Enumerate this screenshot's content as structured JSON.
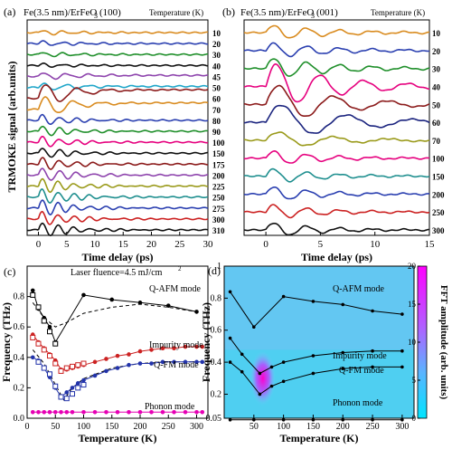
{
  "chart_data": [
    {
      "panel": "(a)",
      "type": "line",
      "title": "Fe(3.5 nm)/ErFeO3(100)",
      "legend_title": "Temperature (K)",
      "ylabel": "TRMOKE signal (arb.units)",
      "xlabel": "Time delay (ps)",
      "xlim": [
        -2,
        30
      ],
      "xticks": [
        0,
        5,
        10,
        15,
        20,
        25,
        30
      ],
      "series": [
        {
          "name": "10",
          "color": "#d98b1f",
          "oscillation": {
            "amplitude": 0.25,
            "period_ps": 3.5,
            "decay_ps": 8,
            "drift": 0.0
          }
        },
        {
          "name": "20",
          "color": "#2a3fb0",
          "oscillation": {
            "amplitude": 0.25,
            "period_ps": 3.5,
            "decay_ps": 8,
            "drift": 0.0
          }
        },
        {
          "name": "30",
          "color": "#1f8f2a",
          "oscillation": {
            "amplitude": 0.25,
            "period_ps": 3.5,
            "decay_ps": 8,
            "drift": 0.0
          }
        },
        {
          "name": "40",
          "color": "#111111",
          "oscillation": {
            "amplitude": 0.2,
            "period_ps": 3.5,
            "decay_ps": 8,
            "drift": 0.0
          }
        },
        {
          "name": "45",
          "color": "#8e44ad",
          "oscillation": {
            "amplitude": 0.4,
            "period_ps": 4.0,
            "decay_ps": 8,
            "drift": 0.1
          }
        },
        {
          "name": "50",
          "color": "#1fa6c9",
          "oscillation": {
            "amplitude": 0.4,
            "period_ps": 4.0,
            "decay_ps": 8,
            "drift": 0.1
          }
        },
        {
          "name": "60",
          "color": "#8b1a1a",
          "oscillation": {
            "amplitude": 1.6,
            "period_ps": 5.5,
            "decay_ps": 5,
            "drift": 0.8
          }
        },
        {
          "name": "70",
          "color": "#d98b1f",
          "oscillation": {
            "amplitude": 1.4,
            "period_ps": 5.0,
            "decay_ps": 5,
            "drift": 0.6
          }
        },
        {
          "name": "80",
          "color": "#2a3fb0",
          "oscillation": {
            "amplitude": 0.6,
            "period_ps": 3.0,
            "decay_ps": 6,
            "drift": 0.0
          }
        },
        {
          "name": "90",
          "color": "#1f8f2a",
          "oscillation": {
            "amplitude": 0.6,
            "period_ps": 3.0,
            "decay_ps": 6,
            "drift": 0.0
          }
        },
        {
          "name": "100",
          "color": "#e6007e",
          "oscillation": {
            "amplitude": 0.6,
            "period_ps": 3.0,
            "decay_ps": 6,
            "drift": 0.0
          }
        },
        {
          "name": "150",
          "color": "#111111",
          "oscillation": {
            "amplitude": 0.6,
            "period_ps": 3.0,
            "decay_ps": 6,
            "drift": 0.0
          }
        },
        {
          "name": "175",
          "color": "#8b1a1a",
          "oscillation": {
            "amplitude": 0.7,
            "period_ps": 3.0,
            "decay_ps": 6,
            "drift": 0.0
          }
        },
        {
          "name": "200",
          "color": "#8e44ad",
          "oscillation": {
            "amplitude": 0.8,
            "period_ps": 3.0,
            "decay_ps": 6,
            "drift": 0.0
          }
        },
        {
          "name": "225",
          "color": "#9a9a1a",
          "oscillation": {
            "amplitude": 0.8,
            "period_ps": 2.8,
            "decay_ps": 6,
            "drift": 0.0
          }
        },
        {
          "name": "250",
          "color": "#1f8f8f",
          "oscillation": {
            "amplitude": 0.9,
            "period_ps": 2.8,
            "decay_ps": 6,
            "drift": 0.0
          }
        },
        {
          "name": "275",
          "color": "#2a3fb0",
          "oscillation": {
            "amplitude": 0.9,
            "period_ps": 2.8,
            "decay_ps": 6,
            "drift": 0.0
          }
        },
        {
          "name": "300",
          "color": "#cc2222",
          "oscillation": {
            "amplitude": 0.8,
            "period_ps": 2.8,
            "decay_ps": 6,
            "drift": 0.0
          }
        },
        {
          "name": "310",
          "color": "#111111",
          "oscillation": {
            "amplitude": 0.8,
            "period_ps": 2.8,
            "decay_ps": 6,
            "drift": 0.0
          }
        }
      ]
    },
    {
      "panel": "(b)",
      "type": "line",
      "title": "Fe(3.5 nm)/ErFeO3(001)",
      "legend_title": "Temperature (K)",
      "xlabel": "Time delay (ps)",
      "xlim": [
        -2,
        15
      ],
      "xticks": [
        0,
        5,
        10,
        15
      ],
      "series": [
        {
          "name": "10",
          "color": "#d98b1f",
          "oscillation": {
            "amplitude": 0.5,
            "period_ps": 3.0,
            "decay_ps": 6,
            "drift": 0.0
          }
        },
        {
          "name": "20",
          "color": "#2a3fb0",
          "oscillation": {
            "amplitude": 0.5,
            "period_ps": 3.0,
            "decay_ps": 6,
            "drift": 0.0
          }
        },
        {
          "name": "30",
          "color": "#1f8f2a",
          "oscillation": {
            "amplitude": 0.7,
            "period_ps": 3.0,
            "decay_ps": 6,
            "drift": 0.0
          }
        },
        {
          "name": "40",
          "color": "#e6007e",
          "oscillation": {
            "amplitude": 1.6,
            "period_ps": 4.0,
            "decay_ps": 6,
            "drift": 0.0
          }
        },
        {
          "name": "50",
          "color": "#8b1a1a",
          "oscillation": {
            "amplitude": 1.4,
            "period_ps": 5.0,
            "decay_ps": 6,
            "drift": 0.0
          }
        },
        {
          "name": "60",
          "color": "#1a237e",
          "oscillation": {
            "amplitude": 1.3,
            "period_ps": 6.0,
            "decay_ps": 7,
            "drift": 0.0
          }
        },
        {
          "name": "70",
          "color": "#9a9a1a",
          "oscillation": {
            "amplitude": 0.6,
            "period_ps": 5.0,
            "decay_ps": 6,
            "drift": 0.0
          }
        },
        {
          "name": "100",
          "color": "#e6007e",
          "oscillation": {
            "amplitude": 0.5,
            "period_ps": 3.0,
            "decay_ps": 5,
            "drift": 0.0
          }
        },
        {
          "name": "150",
          "color": "#1f8f8f",
          "oscillation": {
            "amplitude": 0.5,
            "period_ps": 3.0,
            "decay_ps": 5,
            "drift": 0.0
          }
        },
        {
          "name": "200",
          "color": "#2a3fb0",
          "oscillation": {
            "amplitude": 0.5,
            "period_ps": 3.0,
            "decay_ps": 5,
            "drift": 0.0
          }
        },
        {
          "name": "250",
          "color": "#cc2222",
          "oscillation": {
            "amplitude": 0.5,
            "period_ps": 3.0,
            "decay_ps": 5,
            "drift": 0.0
          }
        },
        {
          "name": "300",
          "color": "#111111",
          "oscillation": {
            "amplitude": 0.5,
            "period_ps": 3.0,
            "decay_ps": 5,
            "drift": 0.0
          }
        }
      ]
    },
    {
      "panel": "(c)",
      "type": "scatter",
      "xlabel": "Temperature (K)",
      "ylabel": "Frequency (THz)",
      "annotation": "Laser fluence=4.5 mJ/cm",
      "annotation_sup": "2",
      "xlim": [
        0,
        320
      ],
      "ylim": [
        0,
        1.0
      ],
      "xticks": [
        0,
        50,
        100,
        150,
        200,
        250,
        300
      ],
      "yticks": [
        0.0,
        0.2,
        0.4,
        0.6,
        0.8
      ],
      "series": [
        {
          "name": "Q-AFM mode",
          "color": "#000000",
          "marker": "filled",
          "x": [
            10,
            20,
            30,
            40,
            50,
            100,
            150,
            200,
            250,
            300
          ],
          "y": [
            0.84,
            0.72,
            0.66,
            0.6,
            0.5,
            0.81,
            0.78,
            0.76,
            0.74,
            0.7
          ]
        },
        {
          "name": "Impurity mode",
          "color": "#cc2222",
          "marker": "filled",
          "x": [
            10,
            20,
            30,
            40,
            50,
            60,
            70,
            80,
            90,
            100,
            120,
            140,
            160,
            180,
            200,
            220,
            240,
            260,
            280,
            300,
            310
          ],
          "y": [
            0.55,
            0.5,
            0.46,
            0.42,
            0.38,
            0.32,
            0.32,
            0.33,
            0.34,
            0.35,
            0.37,
            0.39,
            0.41,
            0.42,
            0.44,
            0.45,
            0.46,
            0.46,
            0.47,
            0.47,
            0.47
          ]
        },
        {
          "name": "Q-FM mode",
          "color": "#2233aa",
          "marker": "filled",
          "x": [
            10,
            20,
            30,
            40,
            50,
            60,
            70,
            80,
            90,
            100,
            120,
            140,
            160,
            180,
            200,
            220,
            240,
            260,
            280,
            300,
            310
          ],
          "y": [
            0.4,
            0.38,
            0.33,
            0.27,
            0.2,
            0.14,
            0.17,
            0.2,
            0.23,
            0.25,
            0.28,
            0.31,
            0.33,
            0.35,
            0.36,
            0.36,
            0.37,
            0.37,
            0.37,
            0.37,
            0.37
          ]
        },
        {
          "name": "Phonon mode",
          "color": "#e600b4",
          "marker": "filled",
          "x": [
            10,
            20,
            30,
            40,
            50,
            60,
            70,
            80,
            100,
            120,
            140,
            160,
            180,
            200,
            220,
            240,
            260,
            280,
            300,
            310
          ],
          "y": [
            0.04,
            0.04,
            0.04,
            0.04,
            0.04,
            0.04,
            0.04,
            0.04,
            0.04,
            0.04,
            0.04,
            0.04,
            0.04,
            0.04,
            0.04,
            0.04,
            0.04,
            0.04,
            0.04,
            0.04
          ]
        },
        {
          "name": "",
          "color": "#000000",
          "marker": "open",
          "x": [
            10,
            20,
            30,
            40,
            50
          ],
          "y": [
            0.81,
            0.73,
            0.64,
            0.57,
            0.49
          ]
        },
        {
          "name": "",
          "color": "#cc2222",
          "marker": "open",
          "x": [
            10,
            20,
            30,
            40,
            50,
            60,
            70,
            80,
            90,
            100
          ],
          "y": [
            0.53,
            0.49,
            0.45,
            0.41,
            0.36,
            0.31,
            0.33,
            0.34,
            0.35,
            0.36
          ]
        },
        {
          "name": "",
          "color": "#2233aa",
          "marker": "open",
          "x": [
            20,
            30,
            40,
            50,
            60,
            70,
            80,
            90,
            100
          ],
          "y": [
            0.37,
            0.33,
            0.29,
            0.21,
            0.14,
            0.13,
            0.16,
            0.2,
            0.22
          ]
        }
      ],
      "fit_curves": [
        {
          "name": "Q-AFM fit",
          "style": "dashed",
          "x": [
            10,
            30,
            50,
            70,
            100,
            150,
            200,
            250,
            300
          ],
          "y": [
            0.76,
            0.66,
            0.6,
            0.63,
            0.69,
            0.73,
            0.75,
            0.73,
            0.7
          ]
        },
        {
          "name": "Q-FM fit",
          "style": "dashed",
          "x": [
            10,
            30,
            50,
            65,
            80,
            100,
            150,
            200,
            250,
            300
          ],
          "y": [
            0.45,
            0.36,
            0.22,
            0.12,
            0.2,
            0.26,
            0.33,
            0.36,
            0.37,
            0.37
          ]
        }
      ]
    },
    {
      "panel": "(d)",
      "type": "heatmap",
      "xlabel": "Temperature (K)",
      "ylabel": "Frequency (THz)",
      "colorbar_label": "FFT amplitude (arb. units)",
      "xlim": [
        0,
        320
      ],
      "ylim": [
        0.05,
        1.0
      ],
      "xticks": [
        50,
        100,
        150,
        200,
        250,
        300
      ],
      "yticks": [
        0.05,
        0.2,
        0.4,
        0.6,
        0.8,
        1
      ],
      "colorbar_ticks": [
        0,
        5,
        10,
        15,
        20
      ],
      "colorbar_range": [
        0,
        20
      ],
      "hotspot": {
        "x": 65,
        "y": 0.3,
        "amplitude": 20
      },
      "series": [
        {
          "name": "Q-AFM mode",
          "color": "#000000",
          "x": [
            10,
            50,
            100,
            150,
            200,
            250,
            300
          ],
          "y": [
            0.84,
            0.62,
            0.81,
            0.78,
            0.76,
            0.72,
            0.7
          ]
        },
        {
          "name": "Impurity mode",
          "color": "#000000",
          "x": [
            10,
            30,
            60,
            80,
            100,
            150,
            200,
            250,
            300
          ],
          "y": [
            0.55,
            0.45,
            0.33,
            0.37,
            0.4,
            0.44,
            0.46,
            0.47,
            0.47
          ]
        },
        {
          "name": "Q-FM mode",
          "color": "#000000",
          "x": [
            10,
            30,
            60,
            80,
            100,
            150,
            200,
            250,
            300
          ],
          "y": [
            0.4,
            0.34,
            0.2,
            0.25,
            0.28,
            0.33,
            0.36,
            0.37,
            0.37
          ]
        },
        {
          "name": "Phonon mode",
          "color": "#000000",
          "x": [
            10,
            50,
            100,
            150,
            200,
            250,
            300
          ],
          "y": [
            0.04,
            0.04,
            0.04,
            0.04,
            0.04,
            0.04,
            0.04
          ]
        }
      ],
      "series_label_colors": {
        "Q-AFM mode": "#000000",
        "Impurity mode": "#cc2222",
        "Q-FM mode": "#2233aa",
        "Phonon mode": "#e600b4"
      }
    }
  ]
}
